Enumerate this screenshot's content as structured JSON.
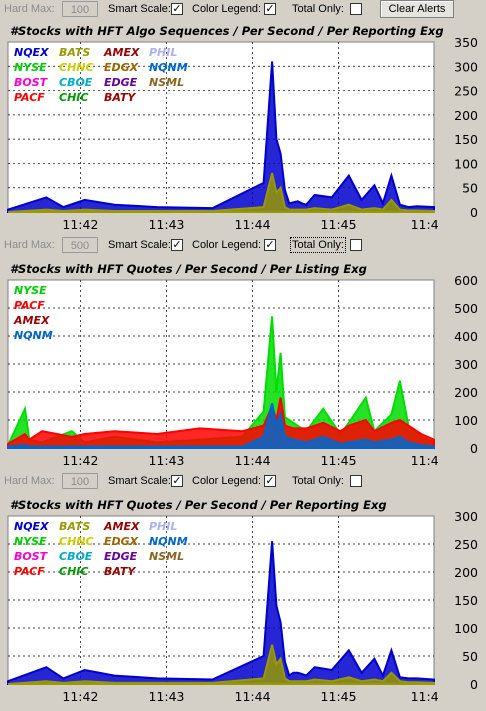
{
  "toolbars": [
    {
      "hard_max_label": "Hard Max:",
      "hard_max_value": "100",
      "smart_scale_label": "Smart Scale:",
      "smart_scale_checked": true,
      "color_legend_label": "Color Legend:",
      "color_legend_checked": true,
      "total_only_label": "Total Only:",
      "total_only_checked": false,
      "clear_alerts_label": "Clear Alerts"
    },
    {
      "hard_max_label": "Hard Max:",
      "hard_max_value": "500",
      "smart_scale_label": "Smart Scale:",
      "smart_scale_checked": true,
      "color_legend_label": "Color Legend:",
      "color_legend_checked": true,
      "total_only_label": "Total Only:",
      "total_only_checked": false
    },
    {
      "hard_max_label": "Hard Max:",
      "hard_max_value": "100",
      "smart_scale_label": "Smart Scale:",
      "smart_scale_checked": true,
      "color_legend_label": "Color Legend:",
      "color_legend_checked": true,
      "total_only_label": "Total Only:",
      "total_only_checked": false
    }
  ],
  "check_mark": "✓",
  "chart_data": [
    {
      "type": "area",
      "title": "#Stocks with HFT Algo Sequences / Per Second / Per Reporting Exg",
      "x_tick_labels": [
        "11:42",
        "11:43",
        "11:44",
        "11:45",
        "11:4"
      ],
      "x": [
        0.0,
        0.09,
        0.13,
        0.18,
        0.25,
        0.35,
        0.48,
        0.6,
        0.62,
        0.63,
        0.64,
        0.65,
        0.66,
        0.67,
        0.68,
        0.69,
        0.7,
        0.72,
        0.76,
        0.8,
        0.83,
        0.86,
        0.88,
        0.9,
        0.92,
        0.94,
        0.96,
        1.0
      ],
      "ylim": [
        0,
        350
      ],
      "y_tick_labels": [
        "0",
        "50",
        "100",
        "150",
        "200",
        "250",
        "300",
        "350"
      ],
      "grid": true,
      "legend_placement": "top-left",
      "legend_items": [
        {
          "label": "NQEX",
          "color": "#0000cc"
        },
        {
          "label": "BATS",
          "color": "#999900"
        },
        {
          "label": "AMEX",
          "color": "#990000"
        },
        {
          "label": "PHIL",
          "color": "#aab0f0"
        },
        {
          "label": "NYSE",
          "color": "#00cc00"
        },
        {
          "label": "CHNC",
          "color": "#cccc00"
        },
        {
          "label": "EDGX",
          "color": "#996600"
        },
        {
          "label": "NQNM",
          "color": "#0066cc"
        },
        {
          "label": "BOST",
          "color": "#ff00cc"
        },
        {
          "label": "CBOE",
          "color": "#00aacc"
        },
        {
          "label": "EDGE",
          "color": "#660099"
        },
        {
          "label": "NSML",
          "color": "#886622"
        },
        {
          "label": "PACF",
          "color": "#ff0000"
        },
        {
          "label": "CHIC",
          "color": "#009900"
        },
        {
          "label": "BATY",
          "color": "#990000"
        }
      ],
      "series": [
        {
          "name": "NQEX",
          "color": "#0000cc",
          "values": [
            5,
            30,
            10,
            25,
            15,
            10,
            8,
            60,
            310,
            150,
            120,
            45,
            18,
            20,
            22,
            18,
            15,
            35,
            30,
            75,
            25,
            55,
            18,
            75,
            15,
            10,
            12,
            10
          ]
        },
        {
          "name": "BATS",
          "color": "#999900",
          "values": [
            0,
            5,
            2,
            5,
            2,
            2,
            2,
            10,
            80,
            40,
            50,
            10,
            5,
            5,
            5,
            5,
            5,
            8,
            5,
            15,
            5,
            8,
            5,
            25,
            5,
            3,
            3,
            2
          ]
        }
      ]
    },
    {
      "type": "area",
      "title": "#Stocks with HFT Quotes / Per Second / Per Listing Exg",
      "x_tick_labels": [
        "11:42",
        "11:43",
        "11:44",
        "11:45",
        "11:4"
      ],
      "x": [
        0.0,
        0.04,
        0.05,
        0.08,
        0.15,
        0.18,
        0.25,
        0.35,
        0.45,
        0.55,
        0.6,
        0.62,
        0.63,
        0.64,
        0.65,
        0.67,
        0.7,
        0.74,
        0.78,
        0.8,
        0.84,
        0.86,
        0.9,
        0.92,
        0.94,
        0.97,
        1.0
      ],
      "ylim": [
        0,
        600
      ],
      "y_tick_labels": [
        "0",
        "100",
        "200",
        "300",
        "400",
        "500",
        "600"
      ],
      "grid": true,
      "legend_placement": "top-left",
      "legend_items": [
        {
          "label": "NYSE",
          "color": "#00cc00"
        },
        {
          "label": "PACF",
          "color": "#ff0000"
        },
        {
          "label": "AMEX",
          "color": "#990000"
        },
        {
          "label": "NQNM",
          "color": "#0066cc"
        }
      ],
      "series": [
        {
          "name": "NYSE",
          "color": "#00dd00",
          "values": [
            10,
            140,
            30,
            20,
            60,
            20,
            40,
            20,
            30,
            40,
            130,
            470,
            200,
            340,
            110,
            90,
            60,
            140,
            50,
            90,
            180,
            60,
            120,
            240,
            80,
            40,
            20
          ]
        },
        {
          "name": "PACF",
          "color": "#ff0000",
          "values": [
            15,
            50,
            30,
            60,
            40,
            50,
            60,
            50,
            70,
            60,
            80,
            150,
            100,
            180,
            80,
            70,
            70,
            90,
            60,
            80,
            100,
            60,
            90,
            100,
            80,
            50,
            30
          ]
        },
        {
          "name": "NQNM",
          "color": "#0066cc",
          "values": [
            5,
            10,
            5,
            5,
            5,
            5,
            5,
            5,
            5,
            5,
            40,
            160,
            80,
            120,
            40,
            30,
            20,
            40,
            15,
            20,
            30,
            20,
            30,
            40,
            20,
            10,
            5
          ]
        }
      ]
    },
    {
      "type": "area",
      "title": "#Stocks with HFT Quotes / Per Second / Per Reporting Exg",
      "x_tick_labels": [
        "11:42",
        "11:43",
        "11:44",
        "11:45",
        "11:4"
      ],
      "x": [
        0.0,
        0.09,
        0.13,
        0.18,
        0.25,
        0.35,
        0.48,
        0.6,
        0.62,
        0.63,
        0.64,
        0.65,
        0.66,
        0.67,
        0.68,
        0.69,
        0.7,
        0.72,
        0.76,
        0.8,
        0.83,
        0.86,
        0.88,
        0.9,
        0.92,
        0.94,
        0.96,
        1.0
      ],
      "ylim": [
        0,
        300
      ],
      "y_tick_labels": [
        "0",
        "50",
        "100",
        "150",
        "200",
        "250",
        "300"
      ],
      "grid": true,
      "legend_placement": "top-left",
      "legend_items": [
        {
          "label": "NQEX",
          "color": "#0000cc"
        },
        {
          "label": "BATS",
          "color": "#999900"
        },
        {
          "label": "AMEX",
          "color": "#990000"
        },
        {
          "label": "PHIL",
          "color": "#aab0f0"
        },
        {
          "label": "NYSE",
          "color": "#00cc00"
        },
        {
          "label": "CHNC",
          "color": "#cccc00"
        },
        {
          "label": "EDGX",
          "color": "#996600"
        },
        {
          "label": "NQNM",
          "color": "#0066cc"
        },
        {
          "label": "BOST",
          "color": "#ff00cc"
        },
        {
          "label": "CBOE",
          "color": "#00aacc"
        },
        {
          "label": "EDGE",
          "color": "#660099"
        },
        {
          "label": "NSML",
          "color": "#886622"
        },
        {
          "label": "PACF",
          "color": "#ff0000"
        },
        {
          "label": "CHIC",
          "color": "#009900"
        },
        {
          "label": "BATY",
          "color": "#990000"
        }
      ],
      "series": [
        {
          "name": "NQEX",
          "color": "#0000cc",
          "values": [
            5,
            30,
            10,
            25,
            15,
            10,
            8,
            50,
            255,
            140,
            110,
            40,
            15,
            20,
            20,
            18,
            15,
            30,
            25,
            60,
            20,
            45,
            15,
            60,
            12,
            10,
            10,
            8
          ]
        },
        {
          "name": "BATS",
          "color": "#999900",
          "values": [
            0,
            5,
            2,
            5,
            2,
            2,
            2,
            10,
            70,
            35,
            45,
            10,
            5,
            5,
            5,
            5,
            5,
            8,
            5,
            12,
            5,
            8,
            5,
            20,
            5,
            3,
            3,
            2
          ]
        }
      ]
    }
  ]
}
